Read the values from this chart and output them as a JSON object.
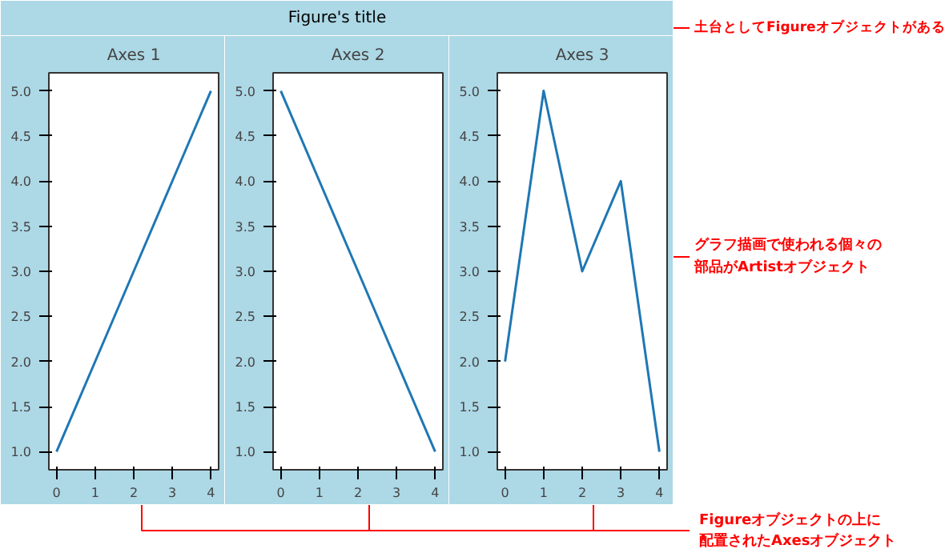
{
  "chart_data": [
    {
      "type": "line",
      "title": "Axes 1",
      "x": [
        0,
        1,
        2,
        3,
        4
      ],
      "series": [
        {
          "color": "#1f77b4",
          "values": [
            1,
            2,
            3,
            4,
            5
          ]
        }
      ],
      "xlim": [
        -0.2,
        4.2
      ],
      "ylim": [
        0.8,
        5.2
      ],
      "xticks": [
        0,
        1,
        2,
        3,
        4
      ],
      "yticks": [
        {
          "value": 1,
          "label": "1.0"
        },
        1.5,
        {
          "value": 2,
          "label": "2.0"
        },
        2.5,
        {
          "value": 3,
          "label": "3.0"
        },
        3.5,
        {
          "value": 4,
          "label": "4.0"
        },
        4.5,
        {
          "value": 5,
          "label": "5.0"
        }
      ]
    },
    {
      "type": "line",
      "title": "Axes 2",
      "x": [
        0,
        1,
        2,
        3,
        4
      ],
      "series": [
        {
          "color": "#1f77b4",
          "values": [
            5,
            4,
            3,
            2,
            1
          ]
        }
      ],
      "xlim": [
        -0.2,
        4.2
      ],
      "ylim": [
        0.8,
        5.2
      ],
      "xticks": [
        0,
        1,
        2,
        3,
        4
      ],
      "yticks": [
        {
          "value": 1,
          "label": "1.0"
        },
        1.5,
        {
          "value": 2,
          "label": "2.0"
        },
        2.5,
        {
          "value": 3,
          "label": "3.0"
        },
        3.5,
        {
          "value": 4,
          "label": "4.0"
        },
        4.5,
        {
          "value": 5,
          "label": "5.0"
        }
      ]
    },
    {
      "type": "line",
      "title": "Axes 3",
      "x": [
        0,
        1,
        2,
        3,
        4
      ],
      "series": [
        {
          "color": "#1f77b4",
          "values": [
            2,
            5,
            3,
            4,
            1
          ]
        }
      ],
      "xlim": [
        -0.2,
        4.2
      ],
      "ylim": [
        0.8,
        5.2
      ],
      "xticks": [
        0,
        1,
        2,
        3,
        4
      ],
      "yticks": [
        {
          "value": 1,
          "label": "1.0"
        },
        1.5,
        {
          "value": 2,
          "label": "2.0"
        },
        2.5,
        {
          "value": 3,
          "label": "3.0"
        },
        3.5,
        {
          "value": 4,
          "label": "4.0"
        },
        4.5,
        {
          "value": 5,
          "label": "5.0"
        }
      ]
    },
    {
      "type": "other",
      "title": "Figure's title",
      "annotations": [
        "土台としてFigureオブジェクトがある",
        "グラフ描画で使われる個々の",
        "部品がArtistオブジェクト",
        "Figureオブジェクトの上に",
        "配置されたAxesオブジェクト"
      ]
    }
  ]
}
